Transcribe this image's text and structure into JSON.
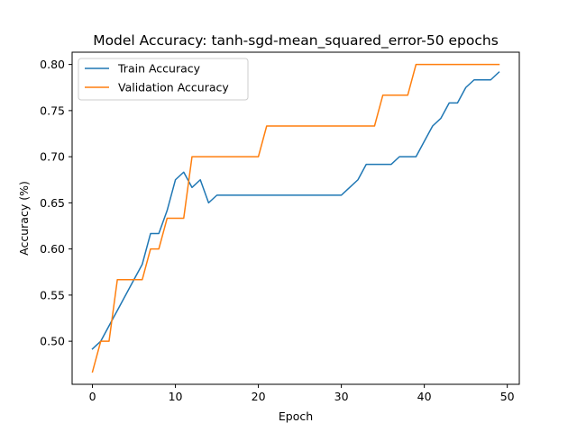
{
  "chart_data": {
    "type": "line",
    "title": "Model Accuracy: tanh-sgd-mean_squared_error-50 epochs",
    "xlabel": "Epoch",
    "ylabel": "Accuracy (%)",
    "xlim": [
      -2.45,
      51.45
    ],
    "ylim": [
      0.4533,
      0.8133
    ],
    "xticks": [
      0,
      10,
      20,
      30,
      40,
      50
    ],
    "yticks": [
      0.5,
      0.55,
      0.6,
      0.65,
      0.7,
      0.75,
      0.8
    ],
    "ytick_labels": [
      "0.50",
      "0.55",
      "0.60",
      "0.65",
      "0.70",
      "0.75",
      "0.80"
    ],
    "legend_position": "top-left",
    "grid": false,
    "x": [
      0,
      1,
      2,
      3,
      4,
      5,
      6,
      7,
      8,
      9,
      10,
      11,
      12,
      13,
      14,
      15,
      16,
      17,
      18,
      19,
      20,
      21,
      22,
      23,
      24,
      25,
      26,
      27,
      28,
      29,
      30,
      31,
      32,
      33,
      34,
      35,
      36,
      37,
      38,
      39,
      40,
      41,
      42,
      43,
      44,
      45,
      46,
      47,
      48,
      49
    ],
    "series": [
      {
        "name": "Train Accuracy",
        "color": "#1f77b4",
        "values": [
          0.4917,
          0.5,
          0.5167,
          0.5333,
          0.55,
          0.5667,
          0.5833,
          0.6167,
          0.6167,
          0.6417,
          0.675,
          0.6833,
          0.6667,
          0.675,
          0.65,
          0.6583,
          0.6583,
          0.6583,
          0.6583,
          0.6583,
          0.6583,
          0.6583,
          0.6583,
          0.6583,
          0.6583,
          0.6583,
          0.6583,
          0.6583,
          0.6583,
          0.6583,
          0.6583,
          0.6667,
          0.675,
          0.6917,
          0.6917,
          0.6917,
          0.6917,
          0.7,
          0.7,
          0.7,
          0.7167,
          0.7333,
          0.7417,
          0.7583,
          0.7583,
          0.775,
          0.7833,
          0.7833,
          0.7833,
          0.7917
        ]
      },
      {
        "name": "Validation Accuracy",
        "color": "#ff7f0e",
        "values": [
          0.4667,
          0.5,
          0.5,
          0.5667,
          0.5667,
          0.5667,
          0.5667,
          0.6,
          0.6,
          0.6333,
          0.6333,
          0.6333,
          0.7,
          0.7,
          0.7,
          0.7,
          0.7,
          0.7,
          0.7,
          0.7,
          0.7,
          0.7333,
          0.7333,
          0.7333,
          0.7333,
          0.7333,
          0.7333,
          0.7333,
          0.7333,
          0.7333,
          0.7333,
          0.7333,
          0.7333,
          0.7333,
          0.7333,
          0.7667,
          0.7667,
          0.7667,
          0.7667,
          0.8,
          0.8,
          0.8,
          0.8,
          0.8,
          0.8,
          0.8,
          0.8,
          0.8,
          0.8,
          0.8
        ]
      }
    ]
  }
}
